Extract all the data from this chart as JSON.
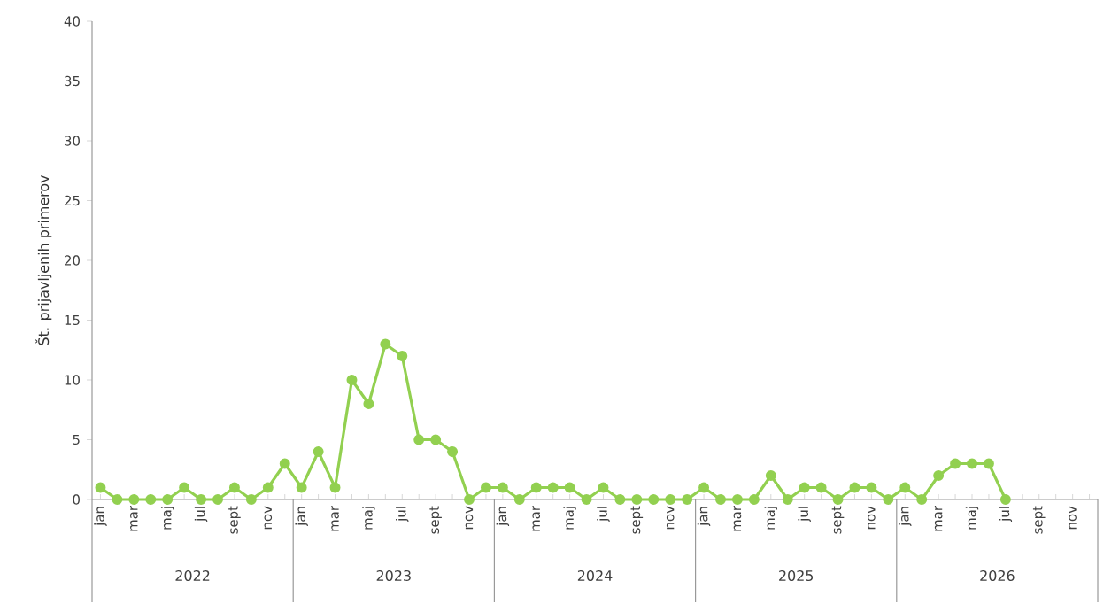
{
  "chart_data": {
    "type": "line",
    "ylabel": "Št. prijavljenih primerov",
    "categories": [
      "jan",
      null,
      "mar",
      null,
      "maj",
      null,
      "jul",
      null,
      "sept",
      null,
      "nov",
      null,
      "jan",
      null,
      "mar",
      null,
      "maj",
      null,
      "jul",
      null,
      "sept",
      null,
      "nov",
      null,
      "jan",
      null,
      "mar",
      null,
      "maj",
      null,
      "jul",
      null,
      "sept",
      null,
      "nov",
      null,
      "jan",
      null,
      "mar",
      null,
      "maj",
      null,
      "jul",
      null,
      "sept",
      null,
      "nov",
      null,
      "jan",
      null,
      "mar",
      null,
      "maj",
      null,
      "jul",
      null,
      "sept",
      null,
      "nov",
      null
    ],
    "series": [
      {
        "color": "#92d050",
        "values": [
          1,
          0,
          0,
          0,
          0,
          1,
          0,
          0,
          1,
          0,
          1,
          3,
          1,
          4,
          1,
          10,
          8,
          13,
          12,
          5,
          5,
          4,
          0,
          1,
          1,
          0,
          1,
          1,
          1,
          0,
          1,
          0,
          0,
          0,
          0,
          0,
          1,
          0,
          0,
          0,
          2,
          0,
          1,
          1,
          0,
          1,
          1,
          0,
          1,
          0,
          2,
          3,
          3,
          3,
          0,
          null,
          null,
          null,
          null,
          null
        ]
      }
    ],
    "ylim": [
      0,
      40
    ],
    "yticks": [
      0,
      5,
      10,
      15,
      20,
      25,
      30,
      35,
      40
    ],
    "grid": false,
    "marker": "circle",
    "line_style": "solid",
    "annotations": [
      "2022",
      "2023",
      "2024",
      "2025",
      "2026"
    ]
  }
}
